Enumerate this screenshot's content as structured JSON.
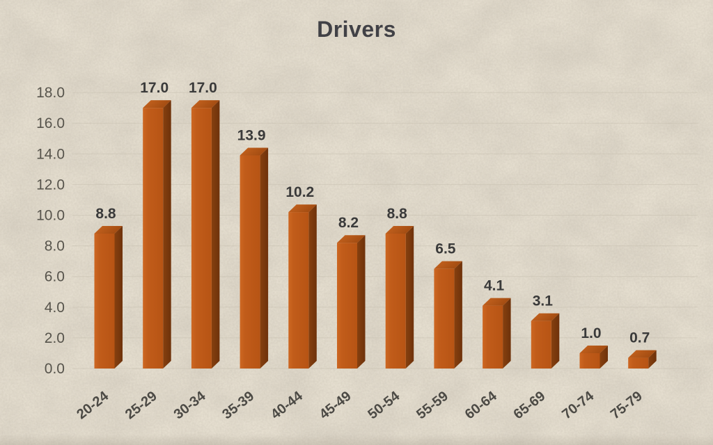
{
  "page": {
    "background_color": "#e6dfd0"
  },
  "chart_data": {
    "type": "bar",
    "style": "3d-column",
    "title": "Drivers",
    "categories": [
      "20-24",
      "25-29",
      "30-34",
      "35-39",
      "40-44",
      "45-49",
      "50-54",
      "55-59",
      "60-64",
      "65-69",
      "70-74",
      "75-79"
    ],
    "values": [
      8.8,
      17.0,
      17.0,
      13.9,
      10.2,
      8.2,
      8.8,
      6.5,
      4.1,
      3.1,
      1.0,
      0.7
    ],
    "value_labels": [
      "8.8",
      "17.0",
      "17.0",
      "13.9",
      "10.2",
      "8.2",
      "8.8",
      "6.5",
      "4.1",
      "3.1",
      "1.0",
      "0.7"
    ],
    "xlabel": "",
    "ylabel": "",
    "y_axis": {
      "min": 0,
      "max": 18,
      "step": 2,
      "ticks": [
        "0.0",
        "2.0",
        "4.0",
        "6.0",
        "8.0",
        "10.0",
        "12.0",
        "14.0",
        "16.0",
        "18.0"
      ]
    },
    "grid": true,
    "legend": "none",
    "colors": {
      "background": "#e6dfd0",
      "title_text": "#414146",
      "bar_front": "#c15c1a",
      "bar_front_light": "#cd6722",
      "bar_top": "#ab5113",
      "bar_top_light": "#c96520",
      "bar_side": "#7f3a0e",
      "bar_side_dark": "#6e320b",
      "axis_text": "#57544c",
      "category_text": "#4c4a45",
      "value_text": "#3a3a3a",
      "gridline": "#c7c0b0"
    }
  }
}
